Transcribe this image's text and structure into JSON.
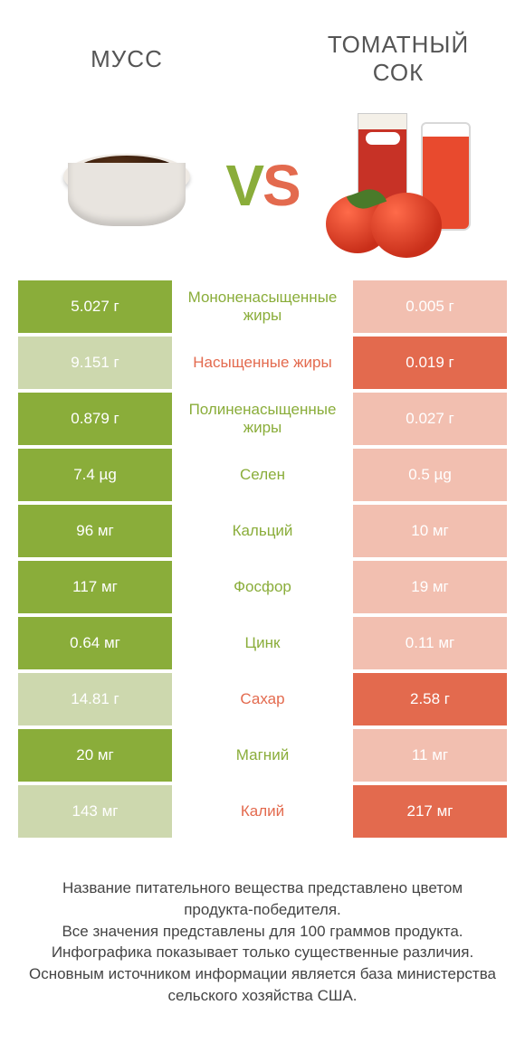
{
  "colors": {
    "left": "#8aad3a",
    "right": "#e36a4e",
    "dim_left": "#cdd8ae",
    "dim_right": "#f2bfb0",
    "text_dark": "#555555"
  },
  "header": {
    "left_title": "МУСС",
    "right_title": "ТОМАТНЫЙ СОК",
    "vs_v": "V",
    "vs_s": "S"
  },
  "rows": [
    {
      "nutrient": "Мононенасыщенные жиры",
      "left": "5.027 г",
      "right": "0.005 г",
      "winner": "left"
    },
    {
      "nutrient": "Насыщенные жиры",
      "left": "9.151 г",
      "right": "0.019 г",
      "winner": "right"
    },
    {
      "nutrient": "Полиненасыщенные жиры",
      "left": "0.879 г",
      "right": "0.027 г",
      "winner": "left"
    },
    {
      "nutrient": "Селен",
      "left": "7.4 µg",
      "right": "0.5 µg",
      "winner": "left"
    },
    {
      "nutrient": "Кальций",
      "left": "96 мг",
      "right": "10 мг",
      "winner": "left"
    },
    {
      "nutrient": "Фосфор",
      "left": "117 мг",
      "right": "19 мг",
      "winner": "left"
    },
    {
      "nutrient": "Цинк",
      "left": "0.64 мг",
      "right": "0.11 мг",
      "winner": "left"
    },
    {
      "nutrient": "Сахар",
      "left": "14.81 г",
      "right": "2.58 г",
      "winner": "right"
    },
    {
      "nutrient": "Магний",
      "left": "20 мг",
      "right": "11 мг",
      "winner": "left"
    },
    {
      "nutrient": "Калий",
      "left": "143 мг",
      "right": "217 мг",
      "winner": "right"
    }
  ],
  "footer": {
    "line1": "Название питательного вещества представлено цветом продукта-победителя.",
    "line2": "Все значения представлены для 100 граммов продукта.",
    "line3": "Инфографика показывает только существенные различия.",
    "line4": "Основным источником информации является база министерства сельского хозяйства США."
  }
}
